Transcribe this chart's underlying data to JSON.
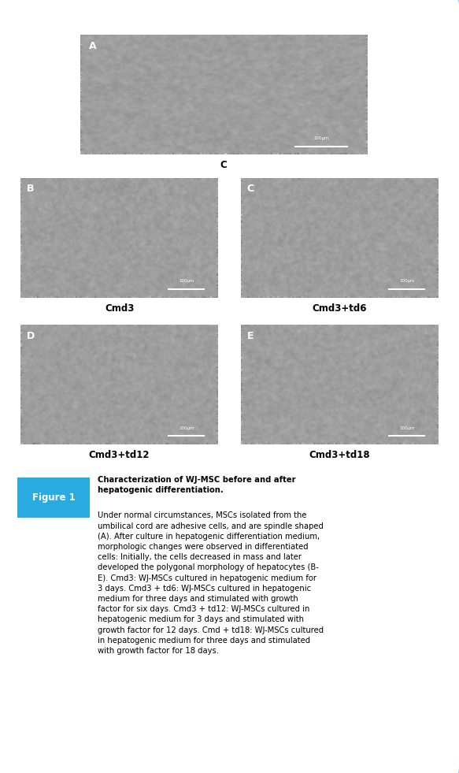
{
  "figure_width": 5.83,
  "figure_height": 9.81,
  "background_color": "#ffffff",
  "border_color": "#29abe2",
  "border_linewidth": 2.5,
  "label_below_A": "C",
  "label_below_B": "Cmd3",
  "label_below_C": "Cmd3+td6",
  "label_below_D": "Cmd3+td12",
  "label_below_E": "Cmd3+td18",
  "fig1_label": "Figure 1",
  "fig1_label_bg": "#29abe2",
  "fig1_label_color": "#ffffff",
  "caption_bold": "Characterization of WJ-MSC before and after\nhepatogenic differentiation.",
  "caption_body": "Under normal circumstances, MSCs isolated from the\numbilical cord are adhesive cells, and are spindle shaped\n(A). After culture in hepatogenic differentiation medium,\nmorphologic changes were observed in differentiated\ncells: Initially, the cells decreased in mass and later\ndeveloped the polygonal morphology of hepatocytes (B-\nE). Cmd3: WJ-MSCs cultured in hepatogenic medium for\n3 days. Cmd3 + td6: WJ-MSCs cultured in hepatogenic\nmedium for three days and stimulated with growth\nfactor for six days. Cmd3 + td12: WJ-MSCs cultured in\nhepatogenic medium for 3 days and stimulated with\ngrowth factor for 12 days. Cmd + td18: WJ-MSCs cultured\nin hepatogenic medium for three days and stimulated\nwith growth factor for 18 days.",
  "scale_bar_color": "#ffffff",
  "panel_letter_color": "#ffffff",
  "panel_letter_fontsize": 9,
  "caption_fontsize": 7.2,
  "label_fontsize": 8.5,
  "fig1_fontsize": 8.5
}
